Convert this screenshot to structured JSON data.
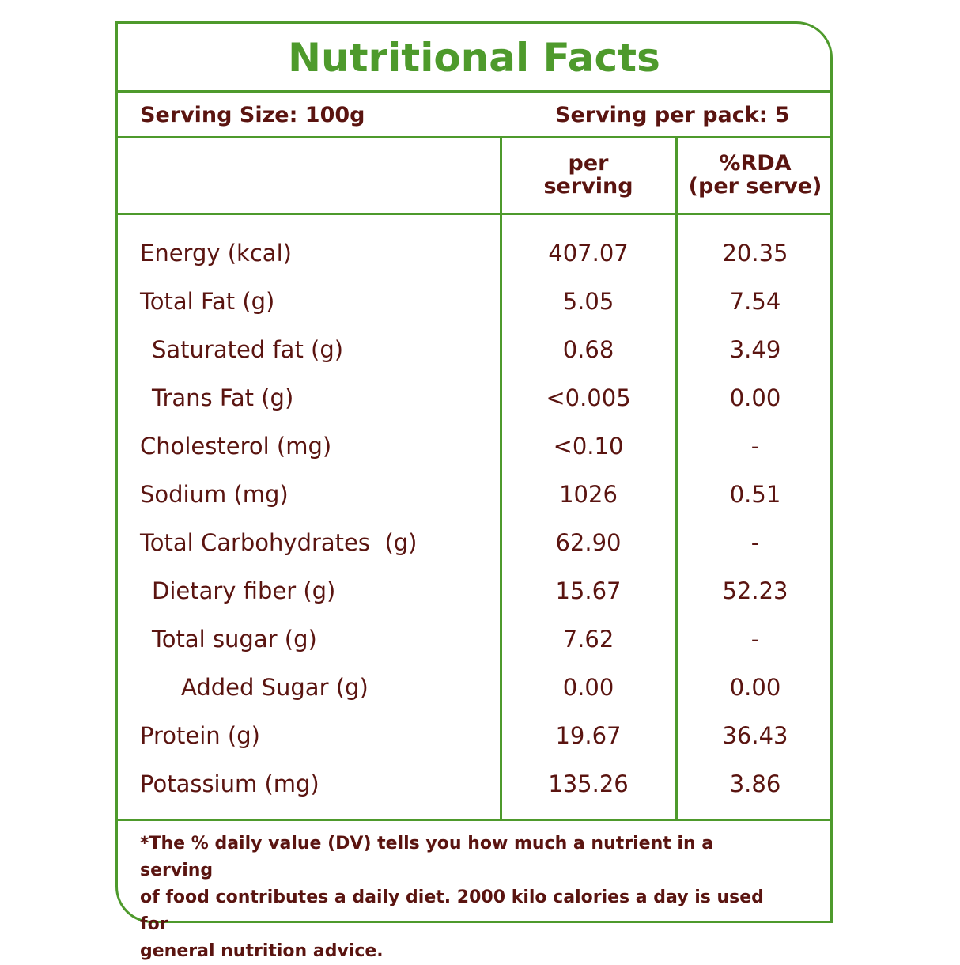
{
  "title": "Nutritional Facts",
  "serving_size": "Serving Size: 100g",
  "servings_per_pack": "Serving per pack: 5",
  "columns": {
    "per_serving_line1": "per",
    "per_serving_line2": "serving",
    "rda_line1": "%RDA",
    "rda_line2": "(per serve)"
  },
  "rows": [
    {
      "name": "Energy (kcal)",
      "per_serving": "407.07",
      "rda": "20.35",
      "indent": 0
    },
    {
      "name": "Total Fat (g)",
      "per_serving": "5.05",
      "rda": "7.54",
      "indent": 0
    },
    {
      "name": "Saturated fat (g)",
      "per_serving": "0.68",
      "rda": "3.49",
      "indent": 1
    },
    {
      "name": "Trans Fat (g)",
      "per_serving": "<0.005",
      "rda": "0.00",
      "indent": 1
    },
    {
      "name": "Cholesterol (mg)",
      "per_serving": "<0.10",
      "rda": "-",
      "indent": 0
    },
    {
      "name": "Sodium (mg)",
      "per_serving": "1026",
      "rda": "0.51",
      "indent": 0
    },
    {
      "name": "Total Carbohydrates  (g)",
      "per_serving": "62.90",
      "rda": "-",
      "indent": 0
    },
    {
      "name": "Dietary fiber (g)",
      "per_serving": "15.67",
      "rda": "52.23",
      "indent": 1
    },
    {
      "name": "Total sugar (g)",
      "per_serving": "7.62",
      "rda": "-",
      "indent": 1
    },
    {
      "name": "Added Sugar (g)",
      "per_serving": "0.00",
      "rda": "0.00",
      "indent": 2
    },
    {
      "name": "Protein (g)",
      "per_serving": "19.67",
      "rda": "36.43",
      "indent": 0
    },
    {
      "name": "Potassium (mg)",
      "per_serving": "135.26",
      "rda": "3.86",
      "indent": 0
    }
  ],
  "footnote": {
    "line1": "*The % daily value (DV) tells you how much a nutrient in a serving",
    "line2": "of food contributes a daily diet. 2000 kilo calories a day is used for",
    "line3": "general nutrition advice."
  },
  "colors": {
    "border": "#4e9a2c",
    "title": "#4e9a2c",
    "text": "#5a1410"
  }
}
